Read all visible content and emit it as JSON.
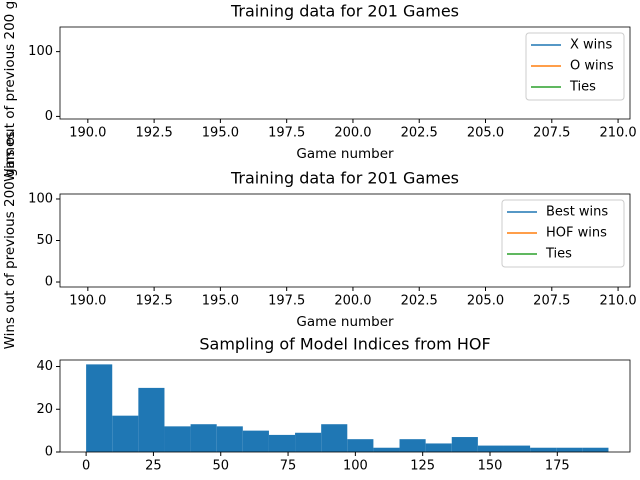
{
  "chart_data": [
    {
      "type": "line",
      "title": "Training data for 201 Games",
      "xlabel": "Game number",
      "ylabel": "Wins out of previous 200 games",
      "x": [],
      "series": [
        {
          "name": "X wins",
          "color": "#1f77b4",
          "values": []
        },
        {
          "name": "O wins",
          "color": "#ff7f0e",
          "values": []
        },
        {
          "name": "Ties",
          "color": "#2ca02c",
          "values": []
        }
      ],
      "xlim": [
        188.95,
        210.45
      ],
      "xticks": [
        {
          "value": 190,
          "label": "190.0"
        },
        {
          "value": 192.5,
          "label": "192.5"
        },
        {
          "value": 195,
          "label": "195.0"
        },
        {
          "value": 197.5,
          "label": "197.5"
        },
        {
          "value": 200,
          "label": "200.0"
        },
        {
          "value": 202.5,
          "label": "202.5"
        },
        {
          "value": 205,
          "label": "205.0"
        },
        {
          "value": 207.5,
          "label": "207.5"
        },
        {
          "value": 210,
          "label": "210.0"
        }
      ],
      "ylim": [
        -4,
        138
      ],
      "yticks": [
        0,
        100
      ],
      "legend": "upper right"
    },
    {
      "type": "line",
      "title": "Training data for 201 Games",
      "xlabel": "Game number",
      "ylabel": "Wins out of previous 200 games",
      "x": [],
      "series": [
        {
          "name": "Best wins",
          "color": "#1f77b4",
          "values": []
        },
        {
          "name": "HOF wins",
          "color": "#ff7f0e",
          "values": []
        },
        {
          "name": "Ties",
          "color": "#2ca02c",
          "values": []
        }
      ],
      "xlim": [
        188.95,
        210.45
      ],
      "xticks": [
        {
          "value": 190,
          "label": "190.0"
        },
        {
          "value": 192.5,
          "label": "192.5"
        },
        {
          "value": 195,
          "label": "195.0"
        },
        {
          "value": 197.5,
          "label": "197.5"
        },
        {
          "value": 200,
          "label": "200.0"
        },
        {
          "value": 202.5,
          "label": "202.5"
        },
        {
          "value": 205,
          "label": "205.0"
        },
        {
          "value": 207.5,
          "label": "207.5"
        },
        {
          "value": 210,
          "label": "210.0"
        }
      ],
      "ylim": [
        -6,
        106
      ],
      "yticks": [
        0,
        50,
        100
      ],
      "legend": "upper right"
    },
    {
      "type": "histogram",
      "title": "Sampling of Model Indices from HOF",
      "color": "#1f77b4",
      "bins": [
        0,
        9.7,
        19.4,
        29.1,
        38.8,
        48.5,
        58.2,
        67.9,
        77.6,
        87.3,
        97,
        106.7,
        116.4,
        126.1,
        135.8,
        145.5,
        155.2,
        164.9,
        174.6,
        184.3,
        194
      ],
      "values": [
        41,
        17,
        30,
        12,
        13,
        12,
        10,
        8,
        9,
        13,
        6,
        2,
        6,
        4,
        7,
        3,
        3,
        2,
        2,
        2
      ],
      "xlim": [
        -9.7,
        202
      ],
      "xticks": [
        0,
        25,
        50,
        75,
        100,
        125,
        150,
        175
      ],
      "ylim": [
        0,
        43.05
      ],
      "yticks": [
        0,
        20,
        40
      ]
    }
  ]
}
